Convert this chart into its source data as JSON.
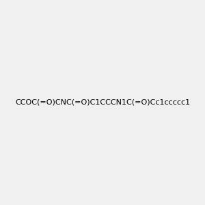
{
  "smiles": "CCOC(=O)CNC(=O)C1CCCN1C(=O)Cc1ccccc1",
  "title": "",
  "bg_color": "#f0f0f0",
  "fig_width": 3.0,
  "fig_height": 3.0,
  "dpi": 100
}
